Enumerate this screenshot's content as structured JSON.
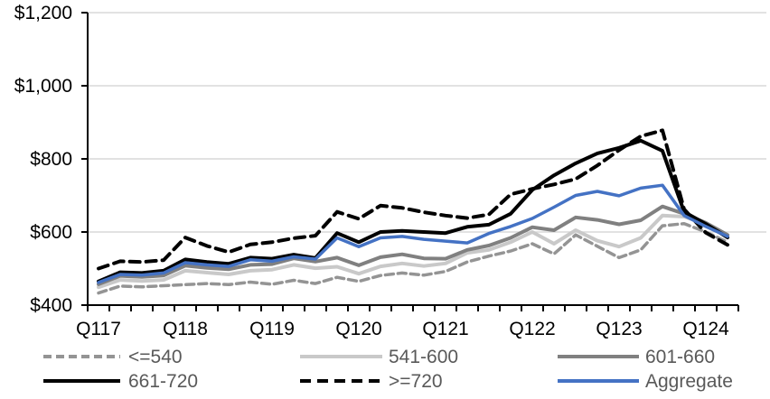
{
  "colors": {
    "background": "#FFFFFF",
    "gridline": "#D9D9D9",
    "axis": "#000000",
    "axis_label_text": "#000000",
    "legend_text": "#595959",
    "accent_blue": "#4472C4"
  },
  "chart_data": {
    "type": "line",
    "title": "",
    "xlabel": "",
    "ylabel": "",
    "grid": "horizontal",
    "legend_position": "bottom",
    "x_categories": [
      "Q117",
      "Q217",
      "Q317",
      "Q417",
      "Q118",
      "Q218",
      "Q318",
      "Q418",
      "Q119",
      "Q219",
      "Q319",
      "Q419",
      "Q120",
      "Q220",
      "Q320",
      "Q420",
      "Q121",
      "Q221",
      "Q321",
      "Q421",
      "Q122",
      "Q222",
      "Q322",
      "Q422",
      "Q123",
      "Q223",
      "Q323",
      "Q423",
      "Q124",
      "Q224"
    ],
    "x_axis_labels_shown": [
      "Q117",
      "Q118",
      "Q119",
      "Q120",
      "Q121",
      "Q122",
      "Q123",
      "Q124"
    ],
    "y_axis": {
      "min": 400,
      "max": 1200,
      "tick_step": 200,
      "tick_labels": [
        "$400",
        "$600",
        "$800",
        "$1,000",
        "$1,200"
      ]
    },
    "series": [
      {
        "name": "<=540",
        "color": "#949494",
        "style": "dashed",
        "values": [
          433,
          452,
          450,
          453,
          456,
          459,
          456,
          463,
          457,
          468,
          459,
          476,
          465,
          481,
          488,
          482,
          492,
          518,
          534,
          548,
          568,
          540,
          592,
          561,
          530,
          551,
          617,
          623,
          600,
          572
        ]
      },
      {
        "name": "541-600",
        "color": "#C9C9C9",
        "style": "solid",
        "values": [
          449,
          469,
          466,
          469,
          494,
          489,
          484,
          494,
          497,
          510,
          501,
          505,
          486,
          506,
          514,
          507,
          514,
          543,
          551,
          572,
          600,
          568,
          605,
          576,
          560,
          584,
          645,
          642,
          622,
          590
        ]
      },
      {
        "name": "601-660",
        "color": "#808080",
        "style": "solid",
        "values": [
          457,
          480,
          477,
          481,
          508,
          502,
          498,
          510,
          512,
          528,
          519,
          530,
          509,
          531,
          539,
          528,
          527,
          551,
          563,
          584,
          613,
          605,
          640,
          633,
          621,
          632,
          670,
          650,
          625,
          592
        ]
      },
      {
        "name": "661-720",
        "color": "#000000",
        "style": "solid",
        "values": [
          465,
          490,
          488,
          494,
          525,
          518,
          513,
          530,
          527,
          538,
          529,
          597,
          572,
          600,
          603,
          600,
          597,
          614,
          620,
          650,
          715,
          755,
          788,
          815,
          830,
          850,
          822,
          655,
          622,
          585
        ]
      },
      {
        "name": ">=720",
        "color": "#000000",
        "style": "dashed",
        "values": [
          500,
          520,
          518,
          523,
          585,
          562,
          545,
          566,
          572,
          583,
          590,
          655,
          636,
          672,
          666,
          654,
          645,
          638,
          648,
          703,
          718,
          730,
          745,
          782,
          824,
          862,
          878,
          662,
          598,
          565
        ]
      },
      {
        "name": "Aggregate",
        "color": "#4472C4",
        "style": "solid",
        "values": [
          462,
          484,
          482,
          488,
          516,
          510,
          506,
          524,
          520,
          532,
          526,
          584,
          560,
          584,
          588,
          580,
          575,
          570,
          596,
          615,
          637,
          668,
          700,
          711,
          699,
          720,
          728,
          645,
          615,
          588
        ]
      }
    ]
  }
}
